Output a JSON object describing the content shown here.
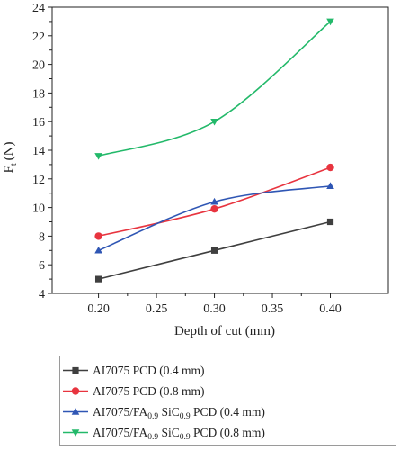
{
  "chart_data": {
    "type": "line",
    "title": "",
    "xlabel": "Depth of cut (mm)",
    "ylabel": "F",
    "ylabel_subscript": "t",
    "ylabel_unit": "(N)",
    "xlim": [
      0.16,
      0.45
    ],
    "ylim": [
      4,
      24
    ],
    "xticks": [
      "0.20",
      "0.25",
      "0.30",
      "0.35",
      "0.40"
    ],
    "yticks": [
      4,
      6,
      8,
      10,
      12,
      14,
      16,
      18,
      20,
      22,
      24
    ],
    "x": [
      0.2,
      0.3,
      0.4
    ],
    "grid": false,
    "legend_position": "below",
    "series": [
      {
        "name": "AI7075 PCD (0.4 mm)",
        "marker": "square",
        "color": "#3f3f3f",
        "values": [
          5.0,
          7.0,
          9.0
        ]
      },
      {
        "name": "AI7075 PCD (0.8 mm)",
        "marker": "circle",
        "color": "#e8343f",
        "values": [
          8.0,
          9.9,
          12.8
        ]
      },
      {
        "name": "AI7075/FA0.9 SiC0.9 PCD (0.4 mm)",
        "marker": "triangle-up",
        "color": "#2f56b4",
        "values": [
          7.0,
          10.4,
          11.5
        ]
      },
      {
        "name": "AI7075/FA0.9 SiC0.9 PCD (0.8 mm)",
        "marker": "triangle-down",
        "color": "#23b96a",
        "values": [
          13.6,
          16.0,
          23.0
        ]
      }
    ]
  },
  "legend": {
    "items": [
      {
        "parts": [
          {
            "t": "AI7075 PCD (0.4 mm)"
          }
        ]
      },
      {
        "parts": [
          {
            "t": "AI7075 PCD (0.8 mm)"
          }
        ]
      },
      {
        "parts": [
          {
            "t": "AI7075/FA"
          },
          {
            "t": "0.9",
            "sub": true
          },
          {
            "t": " SiC"
          },
          {
            "t": "0.9",
            "sub": true
          },
          {
            "t": " PCD (0.4 mm)"
          }
        ]
      },
      {
        "parts": [
          {
            "t": "AI7075/FA"
          },
          {
            "t": "0.9",
            "sub": true
          },
          {
            "t": " SiC"
          },
          {
            "t": "0.9",
            "sub": true
          },
          {
            "t": " PCD (0.8 mm)"
          }
        ]
      }
    ]
  }
}
